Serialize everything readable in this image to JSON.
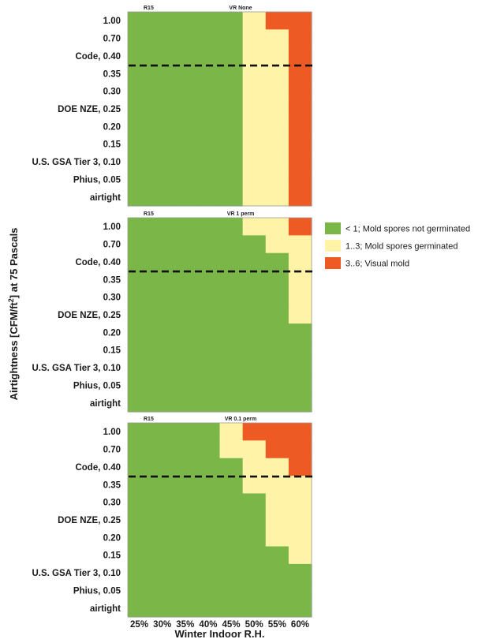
{
  "chart_data": {
    "type": "heatmap",
    "ylabel_main": "Airtightness [CFM/ft",
    "ylabel_sup": "2",
    "ylabel_tail": "] at 75 Pascals",
    "xlabel": "Winter Indoor R.H.",
    "x_categories": [
      "25%",
      "30%",
      "35%",
      "40%",
      "45%",
      "50%",
      "55%",
      "60%"
    ],
    "y_categories": [
      "1.00",
      "0.70",
      "Code, 0.40",
      "0.35",
      "0.30",
      "DOE NZE, 0.25",
      "0.20",
      "0.15",
      "U.S. GSA Tier 3, 0.10",
      "Phius, 0.05",
      "airtight"
    ],
    "reference_line": {
      "y_between": [
        "Code, 0.40",
        "0.35"
      ],
      "style": "dashed"
    },
    "colors": {
      "0": "#7ab648",
      "1": "#fef3a6",
      "2": "#ee5a24"
    },
    "legend": [
      {
        "class": 0,
        "label": "< 1; Mold spores not germinated"
      },
      {
        "class": 1,
        "label": "1..3; Mold spores germinated"
      },
      {
        "class": 2,
        "label": "3..6; Visual mold"
      }
    ],
    "panels": [
      {
        "insulation": "R15",
        "vapor_retarder": "VR None",
        "grid": [
          [
            0,
            0,
            0,
            0,
            0,
            1,
            2,
            2
          ],
          [
            0,
            0,
            0,
            0,
            0,
            1,
            1,
            2
          ],
          [
            0,
            0,
            0,
            0,
            0,
            1,
            1,
            2
          ],
          [
            0,
            0,
            0,
            0,
            0,
            1,
            1,
            2
          ],
          [
            0,
            0,
            0,
            0,
            0,
            1,
            1,
            2
          ],
          [
            0,
            0,
            0,
            0,
            0,
            1,
            1,
            2
          ],
          [
            0,
            0,
            0,
            0,
            0,
            1,
            1,
            2
          ],
          [
            0,
            0,
            0,
            0,
            0,
            1,
            1,
            2
          ],
          [
            0,
            0,
            0,
            0,
            0,
            1,
            1,
            2
          ],
          [
            0,
            0,
            0,
            0,
            0,
            1,
            1,
            2
          ],
          [
            0,
            0,
            0,
            0,
            0,
            1,
            1,
            2
          ]
        ]
      },
      {
        "insulation": "R15",
        "vapor_retarder": "VR 1 perm",
        "grid": [
          [
            0,
            0,
            0,
            0,
            0,
            1,
            1,
            2
          ],
          [
            0,
            0,
            0,
            0,
            0,
            0,
            1,
            1
          ],
          [
            0,
            0,
            0,
            0,
            0,
            0,
            0,
            1
          ],
          [
            0,
            0,
            0,
            0,
            0,
            0,
            0,
            1
          ],
          [
            0,
            0,
            0,
            0,
            0,
            0,
            0,
            1
          ],
          [
            0,
            0,
            0,
            0,
            0,
            0,
            0,
            1
          ],
          [
            0,
            0,
            0,
            0,
            0,
            0,
            0,
            0
          ],
          [
            0,
            0,
            0,
            0,
            0,
            0,
            0,
            0
          ],
          [
            0,
            0,
            0,
            0,
            0,
            0,
            0,
            0
          ],
          [
            0,
            0,
            0,
            0,
            0,
            0,
            0,
            0
          ],
          [
            0,
            0,
            0,
            0,
            0,
            0,
            0,
            0
          ]
        ]
      },
      {
        "insulation": "R15",
        "vapor_retarder": "VR 0.1 perm",
        "grid": [
          [
            0,
            0,
            0,
            0,
            1,
            2,
            2,
            2
          ],
          [
            0,
            0,
            0,
            0,
            1,
            1,
            2,
            2
          ],
          [
            0,
            0,
            0,
            0,
            0,
            1,
            1,
            2
          ],
          [
            0,
            0,
            0,
            0,
            0,
            1,
            1,
            1
          ],
          [
            0,
            0,
            0,
            0,
            0,
            0,
            1,
            1
          ],
          [
            0,
            0,
            0,
            0,
            0,
            0,
            1,
            1
          ],
          [
            0,
            0,
            0,
            0,
            0,
            0,
            1,
            1
          ],
          [
            0,
            0,
            0,
            0,
            0,
            0,
            0,
            1
          ],
          [
            0,
            0,
            0,
            0,
            0,
            0,
            0,
            0
          ],
          [
            0,
            0,
            0,
            0,
            0,
            0,
            0,
            0
          ],
          [
            0,
            0,
            0,
            0,
            0,
            0,
            0,
            0
          ]
        ]
      }
    ]
  }
}
